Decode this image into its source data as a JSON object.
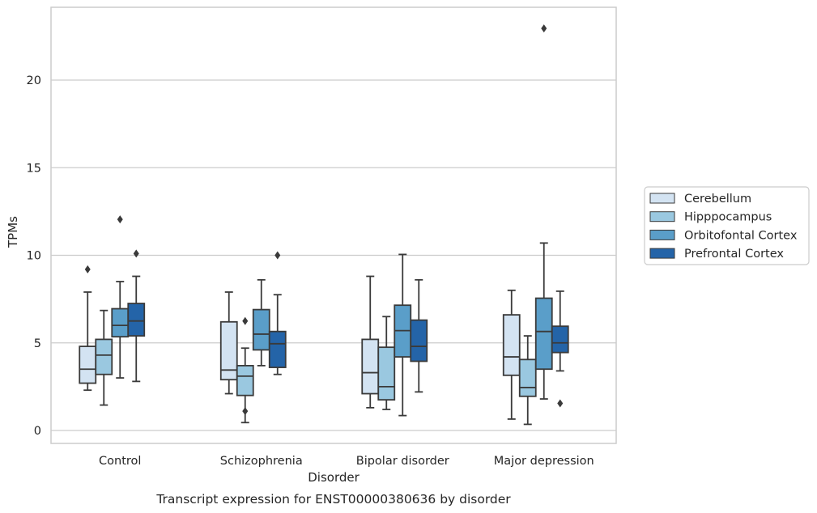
{
  "chart_data": {
    "type": "box",
    "caption": "Transcript expression for ENST00000380636 by disorder",
    "xlabel": "Disorder",
    "ylabel": "TPMs",
    "ylim": [
      -0.7,
      24.2
    ],
    "yticks": [
      0,
      5,
      10,
      15,
      20
    ],
    "grid": "horizontal",
    "legend_position": "right",
    "categories": [
      "Control",
      "Schizophrenia",
      "Bipolar disorder",
      "Major depression"
    ],
    "series": [
      {
        "name": "Cerebellum",
        "color": "#d3e3f2",
        "boxes": [
          {
            "whisker_low": 2.3,
            "q1": 2.7,
            "median": 3.5,
            "q3": 4.8,
            "whisker_high": 7.9,
            "outliers": [
              9.2
            ]
          },
          {
            "whisker_low": 2.1,
            "q1": 2.9,
            "median": 3.45,
            "q3": 6.2,
            "whisker_high": 7.9,
            "outliers": []
          },
          {
            "whisker_low": 1.3,
            "q1": 2.1,
            "median": 3.3,
            "q3": 5.2,
            "whisker_high": 8.8,
            "outliers": []
          },
          {
            "whisker_low": 0.65,
            "q1": 3.15,
            "median": 4.2,
            "q3": 6.6,
            "whisker_high": 8.0,
            "outliers": []
          }
        ]
      },
      {
        "name": "Hipppocampus",
        "color": "#9ac8e0",
        "boxes": [
          {
            "whisker_low": 1.45,
            "q1": 3.2,
            "median": 4.3,
            "q3": 5.2,
            "whisker_high": 6.85,
            "outliers": []
          },
          {
            "whisker_low": 0.45,
            "q1": 2.0,
            "median": 3.1,
            "q3": 3.7,
            "whisker_high": 4.7,
            "outliers": [
              6.25,
              1.1
            ]
          },
          {
            "whisker_low": 1.2,
            "q1": 1.75,
            "median": 2.5,
            "q3": 4.75,
            "whisker_high": 6.5,
            "outliers": []
          },
          {
            "whisker_low": 0.35,
            "q1": 1.95,
            "median": 2.45,
            "q3": 4.05,
            "whisker_high": 5.4,
            "outliers": []
          }
        ]
      },
      {
        "name": "Orbitofontal Cortex",
        "color": "#5a9ec9",
        "boxes": [
          {
            "whisker_low": 3.0,
            "q1": 5.35,
            "median": 6.0,
            "q3": 6.95,
            "whisker_high": 8.5,
            "outliers": [
              12.05
            ]
          },
          {
            "whisker_low": 3.7,
            "q1": 4.6,
            "median": 5.5,
            "q3": 6.9,
            "whisker_high": 8.6,
            "outliers": []
          },
          {
            "whisker_low": 0.85,
            "q1": 4.2,
            "median": 5.7,
            "q3": 7.15,
            "whisker_high": 10.05,
            "outliers": []
          },
          {
            "whisker_low": 1.8,
            "q1": 3.5,
            "median": 5.65,
            "q3": 7.55,
            "whisker_high": 10.7,
            "outliers": [
              22.95
            ]
          }
        ]
      },
      {
        "name": "Prefrontal Cortex",
        "color": "#2464a8",
        "boxes": [
          {
            "whisker_low": 2.8,
            "q1": 5.4,
            "median": 6.25,
            "q3": 7.25,
            "whisker_high": 8.8,
            "outliers": [
              10.1
            ]
          },
          {
            "whisker_low": 3.2,
            "q1": 3.6,
            "median": 4.95,
            "q3": 5.65,
            "whisker_high": 7.75,
            "outliers": [
              10.0
            ]
          },
          {
            "whisker_low": 2.2,
            "q1": 3.95,
            "median": 4.8,
            "q3": 6.3,
            "whisker_high": 8.6,
            "outliers": []
          },
          {
            "whisker_low": 3.4,
            "q1": 4.45,
            "median": 5.0,
            "q3": 5.95,
            "whisker_high": 7.95,
            "outliers": [
              1.55
            ]
          }
        ]
      }
    ]
  },
  "colors": {
    "grid": "#cccccc",
    "frame": "#cccccc",
    "box_edge": "#3a3a3a"
  }
}
